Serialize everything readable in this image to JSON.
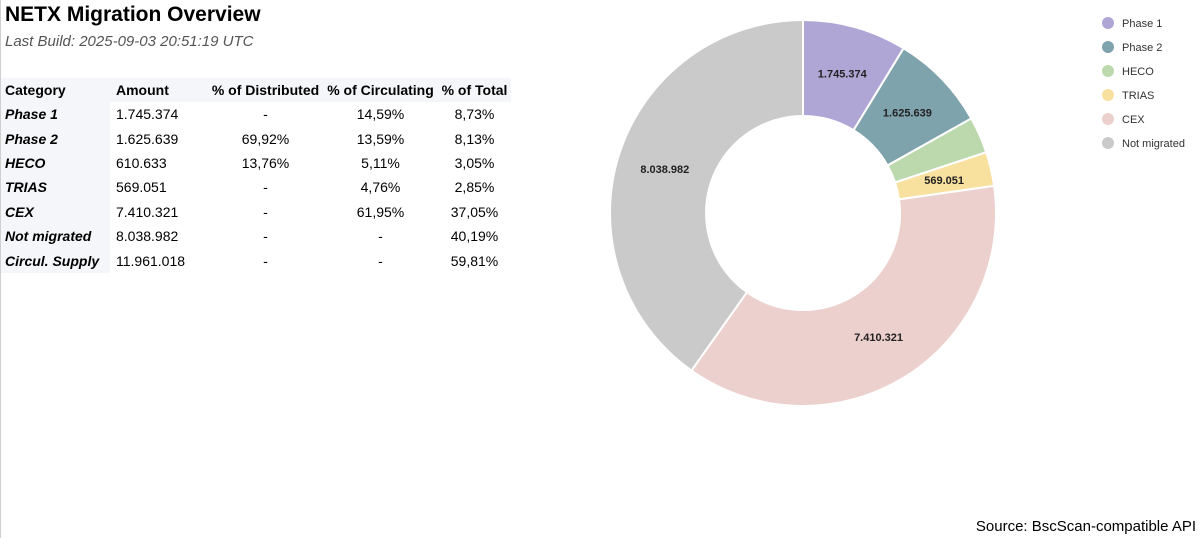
{
  "header": {
    "title": "NETX Migration Overview",
    "last_build": "Last Build: 2025-09-03 20:51:19 UTC"
  },
  "table": {
    "columns": [
      "Category",
      "Amount",
      "% of Distributed",
      "% of Circulating",
      "% of Total"
    ],
    "rows": [
      [
        "Phase 1",
        "1.745.374",
        "-",
        "14,59%",
        "8,73%"
      ],
      [
        "Phase 2",
        "1.625.639",
        "69,92%",
        "13,59%",
        "8,13%"
      ],
      [
        "HECO",
        "610.633",
        "13,76%",
        "5,11%",
        "3,05%"
      ],
      [
        "TRIAS",
        "569.051",
        "-",
        "4,76%",
        "2,85%"
      ],
      [
        "CEX",
        "7.410.321",
        "-",
        "61,95%",
        "37,05%"
      ],
      [
        "Not migrated",
        "8.038.982",
        "-",
        "-",
        "40,19%"
      ],
      [
        "Circul. Supply",
        "11.961.018",
        "-",
        "-",
        "59,81%"
      ]
    ]
  },
  "chart_data": {
    "type": "pie",
    "variant": "donut",
    "start_angle": "top, clockwise",
    "legend_position": "top-right",
    "categories": [
      "Phase 1",
      "Phase 2",
      "HECO",
      "TRIAS",
      "CEX",
      "Not migrated"
    ],
    "values": [
      1745374,
      1625639,
      610633,
      569051,
      7410321,
      8038982
    ],
    "labels": [
      "1.745.374",
      "1.625.639",
      "",
      "569.051",
      "7.410.321",
      "8.038.982"
    ],
    "colors": [
      "#b0a6d6",
      "#7fa3ac",
      "#bcd9ad",
      "#f8e09e",
      "#ecd0cd",
      "#cacaca"
    ]
  },
  "footer": {
    "source": "Source: BscScan-compatible API"
  }
}
